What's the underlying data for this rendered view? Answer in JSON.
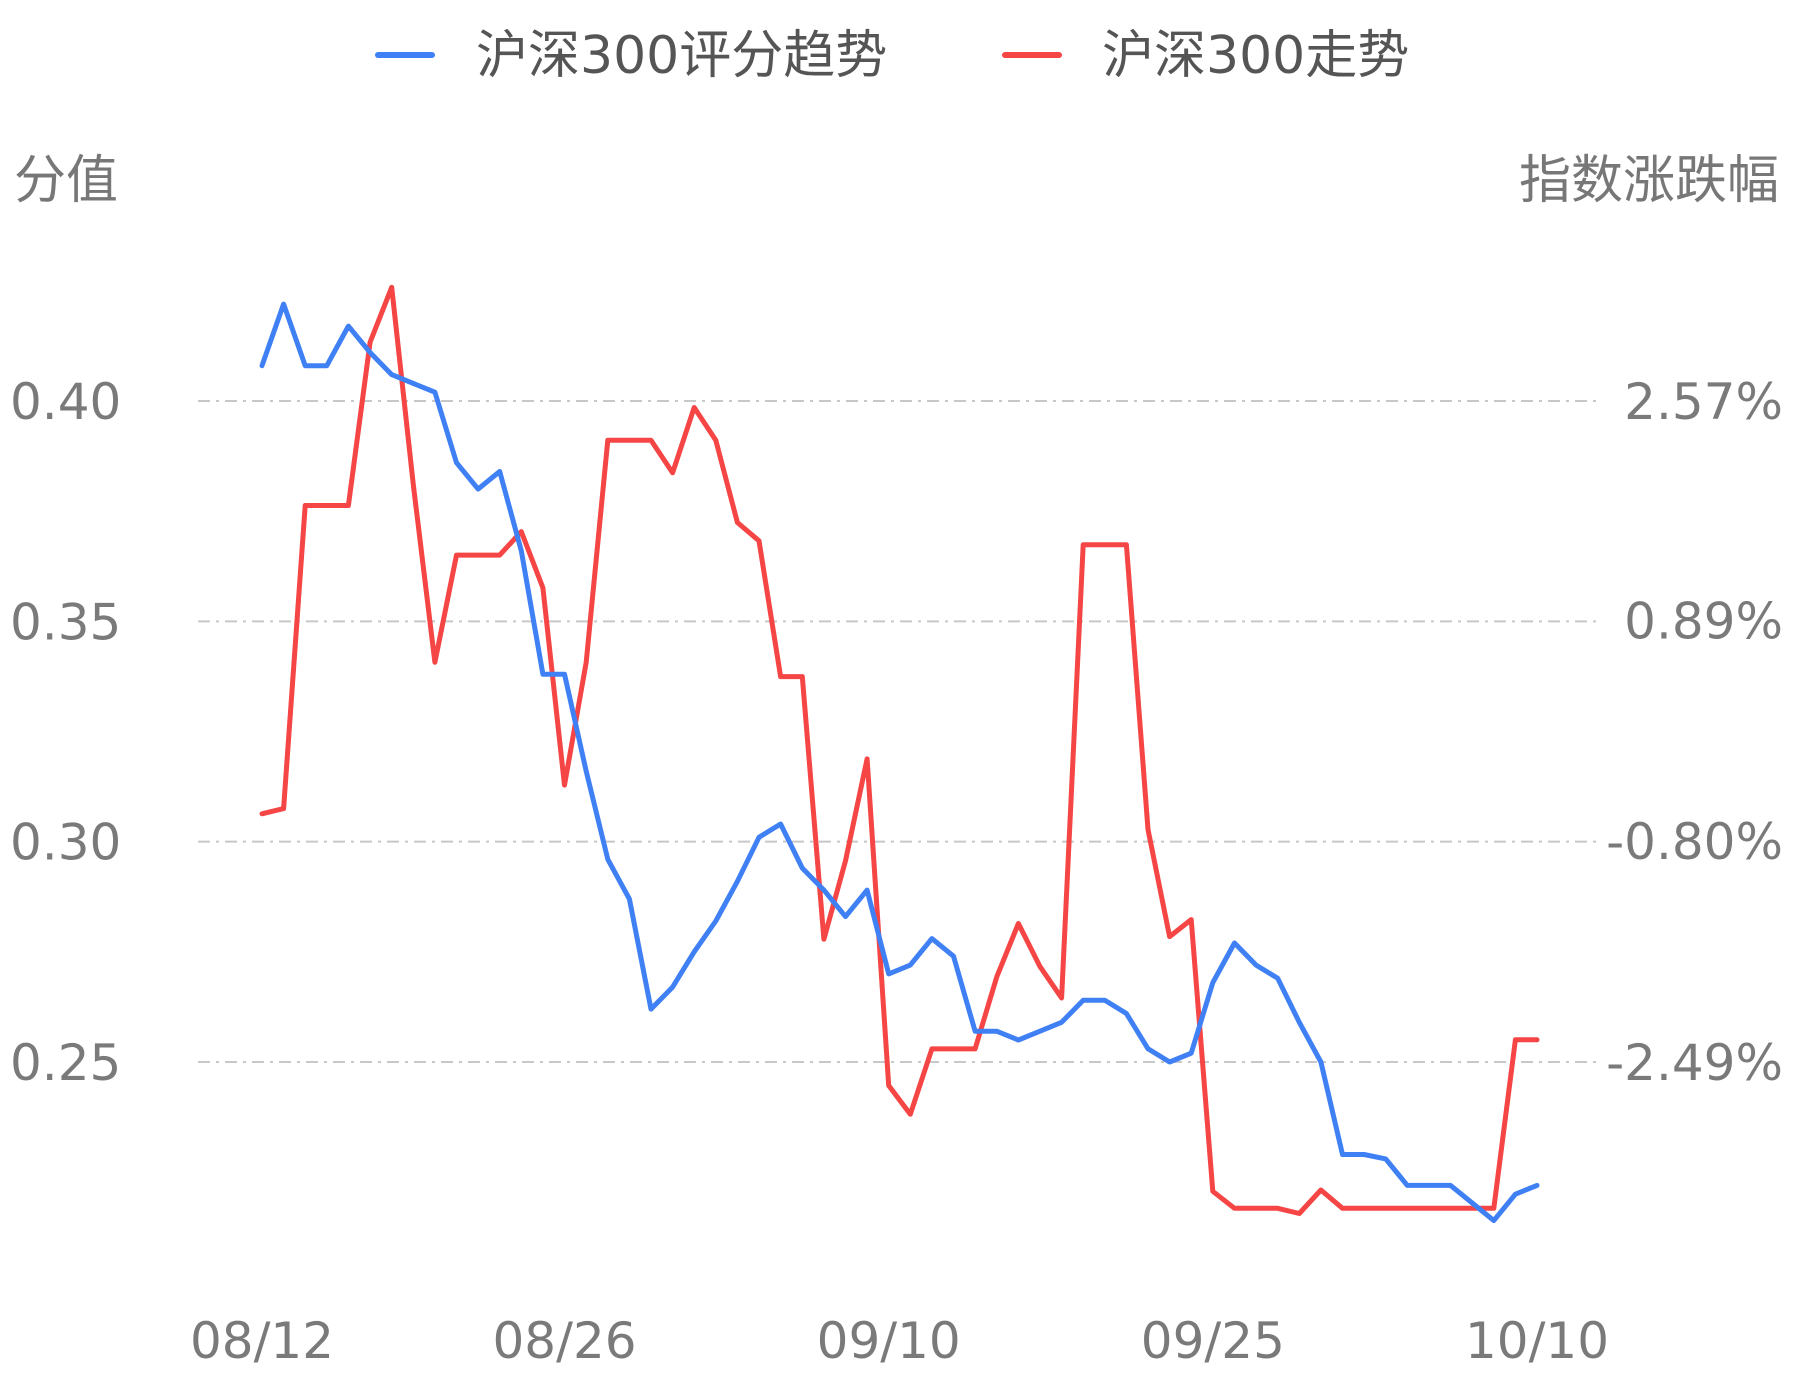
{
  "chart_data": {
    "type": "line",
    "legend": [
      {
        "name": "沪深300评分趋势",
        "color": "#4080f5"
      },
      {
        "name": "沪深300走势",
        "color": "#f54545"
      }
    ],
    "legend_position": "top-center",
    "left_axis": {
      "title": "分值",
      "ticks": [
        "0.40",
        "0.35",
        "0.30",
        "0.25"
      ],
      "tick_values": [
        0.4,
        0.35,
        0.3,
        0.25
      ]
    },
    "right_axis": {
      "title": "指数涨跌幅",
      "ticks": [
        "2.57%",
        "0.89%",
        "-0.80%",
        "-2.49%"
      ],
      "tick_values": [
        2.57,
        0.89,
        -0.8,
        -2.49
      ]
    },
    "x_ticks": [
      "08/12",
      "08/26",
      "09/10",
      "09/25",
      "10/10"
    ],
    "x_tick_positions": [
      0,
      14,
      29,
      44,
      59
    ],
    "grid": "horizontal-dashed",
    "series": [
      {
        "name": "沪深300评分趋势",
        "color": "#4080f5",
        "axis": "left",
        "values": [
          0.408,
          0.422,
          0.408,
          0.408,
          0.417,
          0.411,
          0.406,
          0.404,
          0.402,
          0.386,
          0.38,
          0.384,
          0.366,
          0.338,
          0.338,
          0.316,
          0.296,
          0.287,
          0.262,
          0.267,
          0.275,
          0.282,
          0.291,
          0.301,
          0.304,
          0.294,
          0.289,
          0.283,
          0.289,
          0.27,
          0.272,
          0.278,
          0.274,
          0.257,
          0.257,
          0.255,
          0.257,
          0.259,
          0.264,
          0.264,
          0.261,
          0.253,
          0.25,
          0.252,
          0.268,
          0.277,
          0.272,
          0.269,
          0.259,
          0.25,
          0.229,
          0.229,
          0.228,
          0.222,
          0.222,
          0.222,
          0.218,
          0.214,
          0.22,
          0.222
        ]
      },
      {
        "name": "沪深300走势",
        "color": "#f54545",
        "axis": "right",
        "values": [
          -0.59,
          -0.55,
          1.77,
          1.77,
          1.77,
          3.02,
          3.44,
          1.93,
          0.57,
          1.39,
          1.39,
          1.39,
          1.57,
          1.14,
          -0.37,
          0.57,
          2.27,
          2.27,
          2.27,
          2.02,
          2.52,
          2.27,
          1.64,
          1.5,
          0.46,
          0.46,
          -1.55,
          -0.95,
          -0.17,
          -2.67,
          -2.89,
          -2.39,
          -2.39,
          -2.39,
          -1.84,
          -1.43,
          -1.76,
          -2.0,
          1.47,
          1.47,
          1.47,
          -0.71,
          -1.53,
          -1.4,
          -3.48,
          -3.61,
          -3.61,
          -3.61,
          -3.65,
          -3.47,
          -3.61,
          -3.61,
          -3.61,
          -3.61,
          -3.61,
          -3.61,
          -3.61,
          -3.61,
          -2.32,
          -2.32
        ]
      }
    ]
  }
}
